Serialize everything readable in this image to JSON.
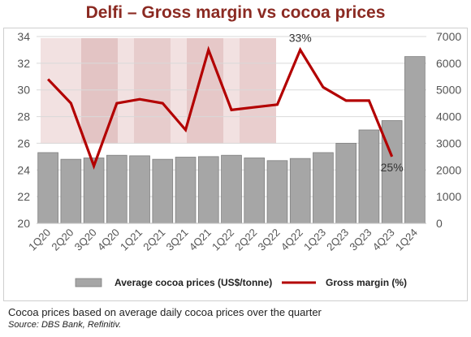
{
  "colors": {
    "title": "#8b2a22",
    "bar_fill": "#a6a6a6",
    "bar_stroke": "#7f7f7f",
    "line": "#b30000",
    "grid": "#d9d9d9",
    "photo_tint": "#e8c9c9"
  },
  "chart_data": {
    "type": "bar+line",
    "title": "Delfi – Gross margin vs cocoa prices",
    "categories": [
      "1Q20",
      "2Q20",
      "3Q20",
      "4Q20",
      "1Q21",
      "2Q21",
      "3Q21",
      "4Q21",
      "1Q22",
      "2Q22",
      "3Q22",
      "4Q22",
      "1Q23",
      "2Q23",
      "3Q23",
      "4Q23",
      "1Q24"
    ],
    "y_left": {
      "min": 20,
      "max": 34,
      "ticks": [
        20,
        22,
        24,
        26,
        28,
        30,
        32,
        34
      ]
    },
    "y_right": {
      "min": 0,
      "max": 7000,
      "ticks": [
        0,
        1000,
        2000,
        3000,
        4000,
        5000,
        6000,
        7000
      ]
    },
    "grid": true,
    "legend_position": "bottom",
    "series": [
      {
        "name": "Average cocoa prices (US$/tonne)",
        "kind": "bar",
        "axis": "right",
        "values": [
          2650,
          2400,
          2450,
          2550,
          2530,
          2400,
          2480,
          2500,
          2550,
          2450,
          2350,
          2430,
          2650,
          3000,
          3500,
          3850,
          6250
        ]
      },
      {
        "name": "Gross margin (%)",
        "kind": "line",
        "axis": "left",
        "values": [
          30.8,
          29.0,
          24.3,
          29.0,
          29.3,
          29.0,
          27.0,
          33.0,
          28.5,
          28.7,
          28.9,
          33.0,
          30.2,
          29.2,
          29.2,
          25.0,
          null
        ]
      }
    ],
    "annotations": [
      {
        "text": "33%",
        "category": "4Q22",
        "value": 33
      },
      {
        "text": "25%",
        "category": "4Q23",
        "value": 25
      }
    ]
  },
  "footer": {
    "note": "Cocoa prices based on average daily cocoa prices over the quarter",
    "source": "Source: DBS Bank, Refinitiv."
  }
}
